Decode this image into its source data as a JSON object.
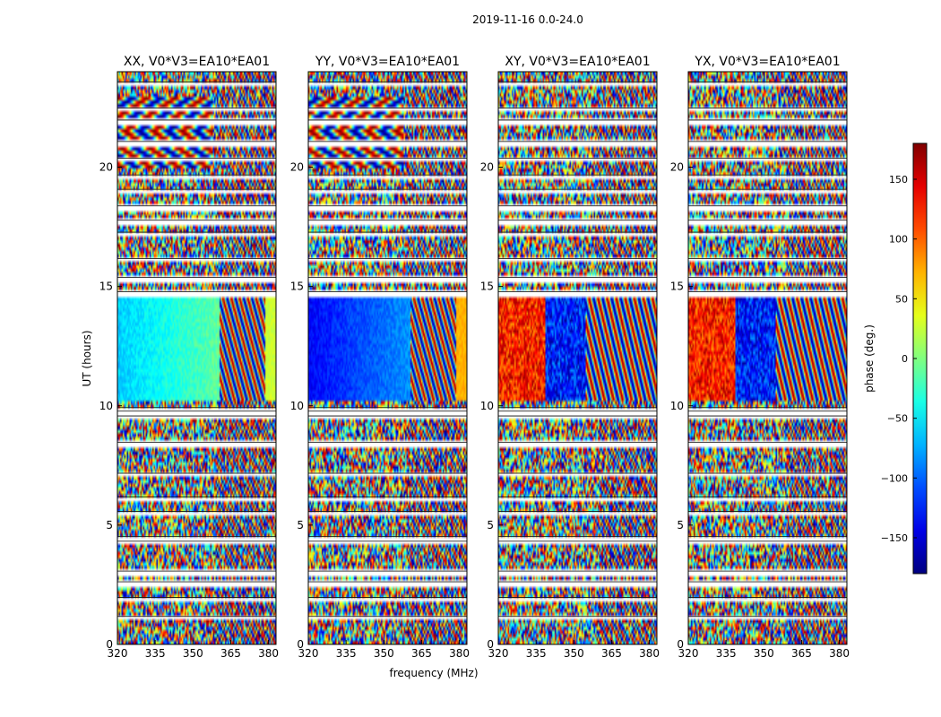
{
  "suptitle": "2019-11-16 0.0-24.0",
  "chart_data": {
    "type": "heatmap",
    "xlabel": "frequency (MHz)",
    "ylabel": "UT (hours)",
    "xlim": [
      320,
      383
    ],
    "ylim": [
      0,
      24
    ],
    "xticks": [
      320,
      335,
      350,
      365,
      380
    ],
    "yticks": [
      0,
      5,
      10,
      15,
      20
    ],
    "panels": [
      {
        "title": "XX, V0*V3=EA10*EA01",
        "pol": "XX"
      },
      {
        "title": "YY, V0*V3=EA10*EA01",
        "pol": "YY"
      },
      {
        "title": "XY, V0*V3=EA10*EA01",
        "pol": "XY"
      },
      {
        "title": "YX, V0*V3=EA10*EA01",
        "pol": "YX"
      }
    ],
    "colorbar": {
      "label": "phase (deg.)",
      "range": [
        -180,
        180
      ],
      "ticks": [
        150,
        100,
        50,
        0,
        -50,
        -100,
        -150
      ],
      "colormap": "jet"
    },
    "flagged_ut_hours": [
      1.1,
      1.9,
      2.55,
      3.0,
      4.25,
      4.45,
      5.5,
      6.1,
      7.1,
      8.4,
      9.5,
      9.7,
      9.85,
      14.7,
      15.3,
      16.1,
      17.2,
      17.7,
      18.3,
      19.0,
      19.6,
      20.3,
      21.0,
      21.9,
      22.4,
      23.5
    ],
    "calibrator_window_ut_hours": [
      10.2,
      14.6
    ]
  },
  "colors": {
    "background": "#ffffff",
    "flag": "#ffffff",
    "axis": "#000000"
  }
}
